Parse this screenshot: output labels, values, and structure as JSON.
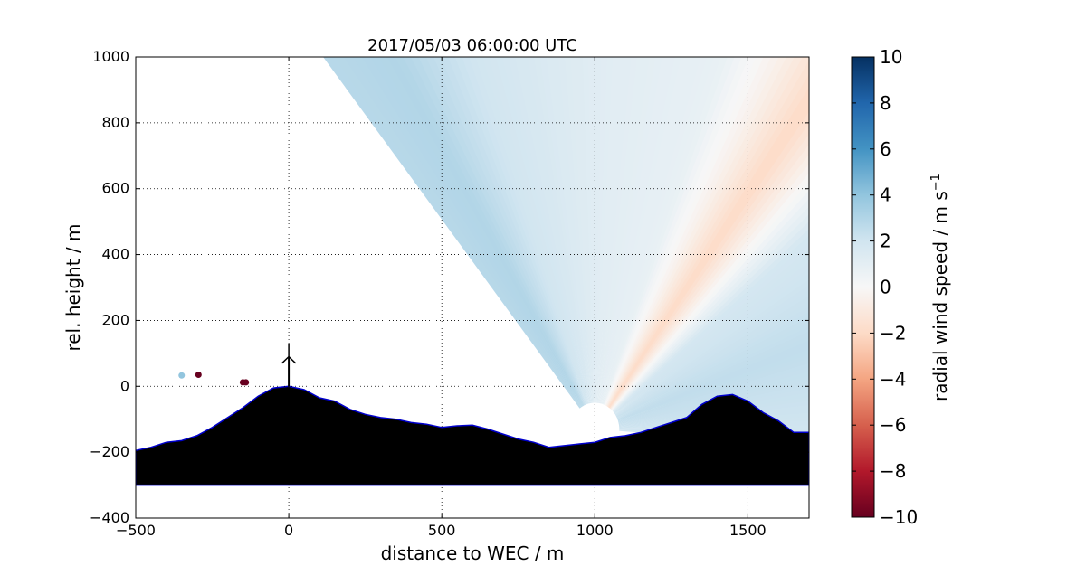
{
  "chart_data": {
    "type": "heatmap",
    "title": "2017/05/03 06:00:00 UTC",
    "xlabel": "distance to WEC / m",
    "ylabel": "rel. height / m",
    "xlim": [
      -500,
      1700
    ],
    "ylim": [
      -400,
      1000
    ],
    "xticks": [
      -500,
      0,
      500,
      1000,
      1500
    ],
    "yticks": [
      -400,
      -200,
      0,
      200,
      400,
      600,
      800,
      1000
    ],
    "grid": true,
    "colorbar": {
      "label": "radial wind speed / m s",
      "label_superscript": "−1",
      "range": [
        -10,
        10
      ],
      "ticks": [
        10,
        8,
        6,
        4,
        2,
        0,
        -2,
        -4,
        -6,
        -8,
        -10
      ],
      "colormap": "RdBu",
      "colors": [
        "#67001f",
        "#b2182b",
        "#d6604d",
        "#f4a582",
        "#fddbc7",
        "#f7f7f7",
        "#d1e5f0",
        "#92c5de",
        "#4393c3",
        "#2166ac",
        "#053061"
      ]
    },
    "scan": {
      "origin": [
        1000,
        -130
      ],
      "min_range": 80,
      "elevation_deg": [
        -4,
        128
      ],
      "mean_radial_speed_by_elevation": [
        {
          "elevation_deg": 0,
          "value": 2.0
        },
        {
          "elevation_deg": 20,
          "value": 2.5
        },
        {
          "elevation_deg": 40,
          "value": 1.8
        },
        {
          "elevation_deg": 55,
          "value": -2.0
        },
        {
          "elevation_deg": 62,
          "value": -0.5
        },
        {
          "elevation_deg": 70,
          "value": 0.8
        },
        {
          "elevation_deg": 90,
          "value": 1.2
        },
        {
          "elevation_deg": 110,
          "value": 2.0
        },
        {
          "elevation_deg": 120,
          "value": 3.0
        },
        {
          "elevation_deg": 128,
          "value": 2.8
        }
      ]
    },
    "wec": {
      "x": 0,
      "hub_height": 90,
      "rotor_radius": 40
    },
    "terrain": {
      "base": -300,
      "profile": [
        {
          "x": -500,
          "y": -195
        },
        {
          "x": -450,
          "y": -185
        },
        {
          "x": -400,
          "y": -170
        },
        {
          "x": -350,
          "y": -165
        },
        {
          "x": -300,
          "y": -150
        },
        {
          "x": -250,
          "y": -125
        },
        {
          "x": -200,
          "y": -95
        },
        {
          "x": -150,
          "y": -65
        },
        {
          "x": -100,
          "y": -30
        },
        {
          "x": -50,
          "y": -5
        },
        {
          "x": 0,
          "y": 0
        },
        {
          "x": 50,
          "y": -10
        },
        {
          "x": 100,
          "y": -35
        },
        {
          "x": 150,
          "y": -45
        },
        {
          "x": 200,
          "y": -70
        },
        {
          "x": 250,
          "y": -85
        },
        {
          "x": 300,
          "y": -95
        },
        {
          "x": 350,
          "y": -100
        },
        {
          "x": 400,
          "y": -110
        },
        {
          "x": 450,
          "y": -115
        },
        {
          "x": 500,
          "y": -125
        },
        {
          "x": 550,
          "y": -120
        },
        {
          "x": 600,
          "y": -118
        },
        {
          "x": 650,
          "y": -130
        },
        {
          "x": 700,
          "y": -145
        },
        {
          "x": 750,
          "y": -160
        },
        {
          "x": 800,
          "y": -170
        },
        {
          "x": 850,
          "y": -185
        },
        {
          "x": 900,
          "y": -180
        },
        {
          "x": 950,
          "y": -175
        },
        {
          "x": 1000,
          "y": -170
        },
        {
          "x": 1050,
          "y": -155
        },
        {
          "x": 1100,
          "y": -150
        },
        {
          "x": 1150,
          "y": -140
        },
        {
          "x": 1200,
          "y": -125
        },
        {
          "x": 1250,
          "y": -110
        },
        {
          "x": 1300,
          "y": -95
        },
        {
          "x": 1350,
          "y": -55
        },
        {
          "x": 1400,
          "y": -30
        },
        {
          "x": 1450,
          "y": -25
        },
        {
          "x": 1500,
          "y": -45
        },
        {
          "x": 1550,
          "y": -80
        },
        {
          "x": 1600,
          "y": -105
        },
        {
          "x": 1650,
          "y": -140
        },
        {
          "x": 1700,
          "y": -140
        }
      ]
    },
    "outliers": [
      {
        "x": -350,
        "y": 33,
        "value": 4
      },
      {
        "x": -295,
        "y": 35,
        "value": -10
      },
      {
        "x": -150,
        "y": 12,
        "value": -10
      },
      {
        "x": -140,
        "y": 12,
        "value": -10
      }
    ]
  }
}
